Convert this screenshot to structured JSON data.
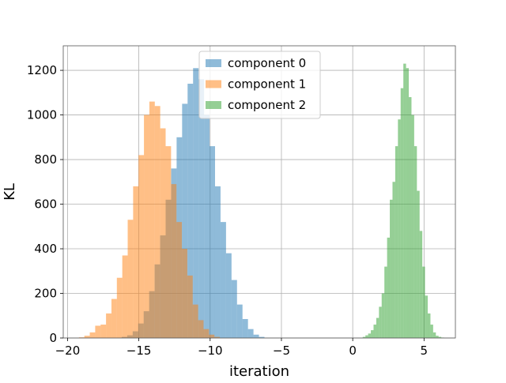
{
  "chart_data": {
    "type": "bar",
    "subtype": "overlapping-histogram",
    "title": "",
    "xlabel": "iteration",
    "ylabel": "KL",
    "xlim": [
      -20.3,
      7.2
    ],
    "ylim": [
      0,
      1310
    ],
    "xticks": [
      -20,
      -15,
      -10,
      -5,
      0,
      5
    ],
    "xtick_labels": [
      "−20",
      "−15",
      "−10",
      "−5",
      "0",
      "5"
    ],
    "yticks": [
      0,
      200,
      400,
      600,
      800,
      1000,
      1200
    ],
    "ytick_labels": [
      "0",
      "200",
      "400",
      "600",
      "800",
      "1000",
      "1200"
    ],
    "grid": true,
    "legend_position": "top-center",
    "bar_alpha": 0.5,
    "series": [
      {
        "name": "component 0",
        "color": "#1f77b4",
        "bin_start": -16.2,
        "bin_width": 0.385,
        "values": [
          5,
          12,
          30,
          65,
          120,
          210,
          330,
          460,
          620,
          760,
          900,
          1050,
          1140,
          1210,
          1160,
          1000,
          860,
          680,
          520,
          380,
          260,
          150,
          85,
          40,
          15,
          5
        ]
      },
      {
        "name": "component 1",
        "color": "#ff7f0e",
        "bin_start": -19.2,
        "bin_width": 0.38,
        "values": [
          3,
          10,
          25,
          55,
          60,
          110,
          175,
          270,
          370,
          530,
          680,
          820,
          1000,
          1060,
          1040,
          940,
          860,
          690,
          520,
          400,
          280,
          150,
          80,
          40,
          15,
          5
        ]
      },
      {
        "name": "component 2",
        "color": "#2ca02c",
        "bin_start": 0.7,
        "bin_width": 0.19,
        "values": [
          5,
          12,
          20,
          35,
          60,
          90,
          140,
          200,
          320,
          450,
          620,
          700,
          860,
          980,
          1120,
          1230,
          1210,
          1080,
          1000,
          860,
          660,
          480,
          320,
          190,
          110,
          60,
          25,
          10,
          5,
          2
        ]
      }
    ]
  }
}
